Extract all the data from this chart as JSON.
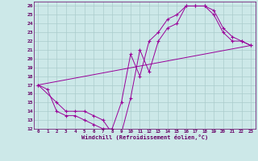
{
  "xlabel": "Windchill (Refroidissement éolien,°C)",
  "bg_color": "#cce8e8",
  "line_color": "#990099",
  "grid_color": "#aacccc",
  "xlim": [
    -0.5,
    23.5
  ],
  "ylim": [
    12,
    26.5
  ],
  "xticks": [
    0,
    1,
    2,
    3,
    4,
    5,
    6,
    7,
    8,
    9,
    10,
    11,
    12,
    13,
    14,
    15,
    16,
    17,
    18,
    19,
    20,
    21,
    22,
    23
  ],
  "yticks": [
    12,
    13,
    14,
    15,
    16,
    17,
    18,
    19,
    20,
    21,
    22,
    23,
    24,
    25,
    26
  ],
  "line1_x": [
    0,
    1,
    2,
    3,
    4,
    5,
    6,
    7,
    8,
    9,
    10,
    11,
    12,
    13,
    14,
    15,
    16,
    17,
    18,
    19,
    20,
    21,
    22,
    23
  ],
  "line1_y": [
    17.0,
    16.5,
    14.0,
    13.5,
    13.5,
    13.0,
    12.5,
    12.0,
    12.0,
    15.0,
    20.5,
    18.0,
    22.0,
    23.0,
    24.5,
    25.0,
    26.0,
    26.0,
    26.0,
    25.0,
    23.0,
    22.0,
    22.0,
    21.5
  ],
  "line2_x": [
    0,
    2,
    3,
    4,
    5,
    6,
    7,
    8,
    9,
    10,
    11,
    12,
    13,
    14,
    15,
    16,
    17,
    18,
    19,
    20,
    21,
    22,
    23
  ],
  "line2_y": [
    17.0,
    15.0,
    14.0,
    14.0,
    14.0,
    13.5,
    13.0,
    11.5,
    11.5,
    15.5,
    21.0,
    18.5,
    22.0,
    23.5,
    24.0,
    26.0,
    26.0,
    26.0,
    25.5,
    23.5,
    22.5,
    22.0,
    21.5
  ],
  "line3_x": [
    0,
    23
  ],
  "line3_y": [
    17.0,
    21.5
  ],
  "yticklabels": [
    "12",
    "13",
    "14",
    "15",
    "16",
    "17",
    "18",
    "19",
    "20",
    "21",
    "22",
    "23",
    "24",
    "25",
    "26"
  ],
  "xticklabels": [
    "0",
    "1",
    "2",
    "3",
    "4",
    "5",
    "6",
    "7",
    "8",
    "9",
    "10",
    "11",
    "12",
    "13",
    "14",
    "15",
    "16",
    "17",
    "18",
    "19",
    "20",
    "21",
    "22",
    "23"
  ]
}
